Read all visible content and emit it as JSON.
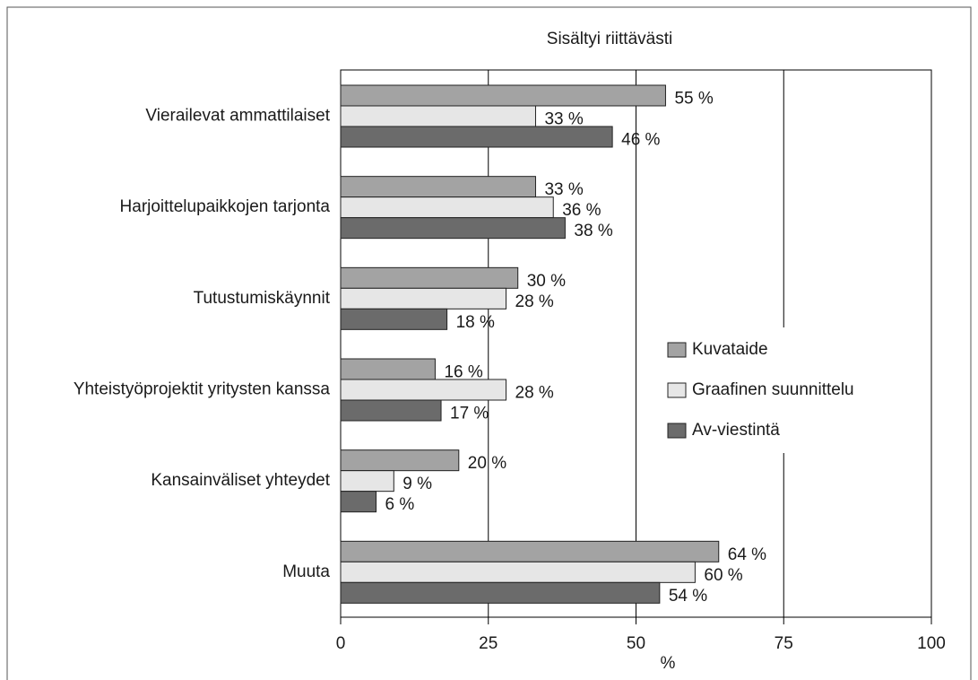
{
  "chart_data": {
    "type": "hbar",
    "title": "Sisältyi riittävästi",
    "x_label": "%",
    "categories": [
      "Vierailevat ammattilaiset",
      "Harjoittelupaikkojen tarjonta",
      "Tutustumiskäynnit",
      "Yhteistyöprojektit yritysten kanssa",
      "Kansainväliset yhteydet",
      "Muuta"
    ],
    "series": [
      {
        "name": "Kuvataide",
        "color": "#a3a3a3",
        "values": [
          55,
          33,
          30,
          16,
          20,
          64
        ],
        "value_labels": [
          "55 %",
          "33 %",
          "30 %",
          "16 %",
          "20 %",
          "64 %"
        ]
      },
      {
        "name": "Graafinen suunnittelu",
        "color": "#e6e6e6",
        "values": [
          33,
          36,
          28,
          28,
          9,
          60
        ],
        "value_labels": [
          "33 %",
          "36 %",
          "28 %",
          "28 %",
          "9 %",
          "60 %"
        ]
      },
      {
        "name": "Av-viestintä",
        "color": "#6b6b6b",
        "values": [
          46,
          38,
          18,
          17,
          6,
          54
        ],
        "value_labels": [
          "46 %",
          "38 %",
          "18 %",
          "17 %",
          "6 %",
          "54 %"
        ]
      }
    ],
    "xlim": [
      0,
      100
    ],
    "xticks": [
      0,
      25,
      50,
      75,
      100
    ],
    "grid": true,
    "legend": "right"
  }
}
